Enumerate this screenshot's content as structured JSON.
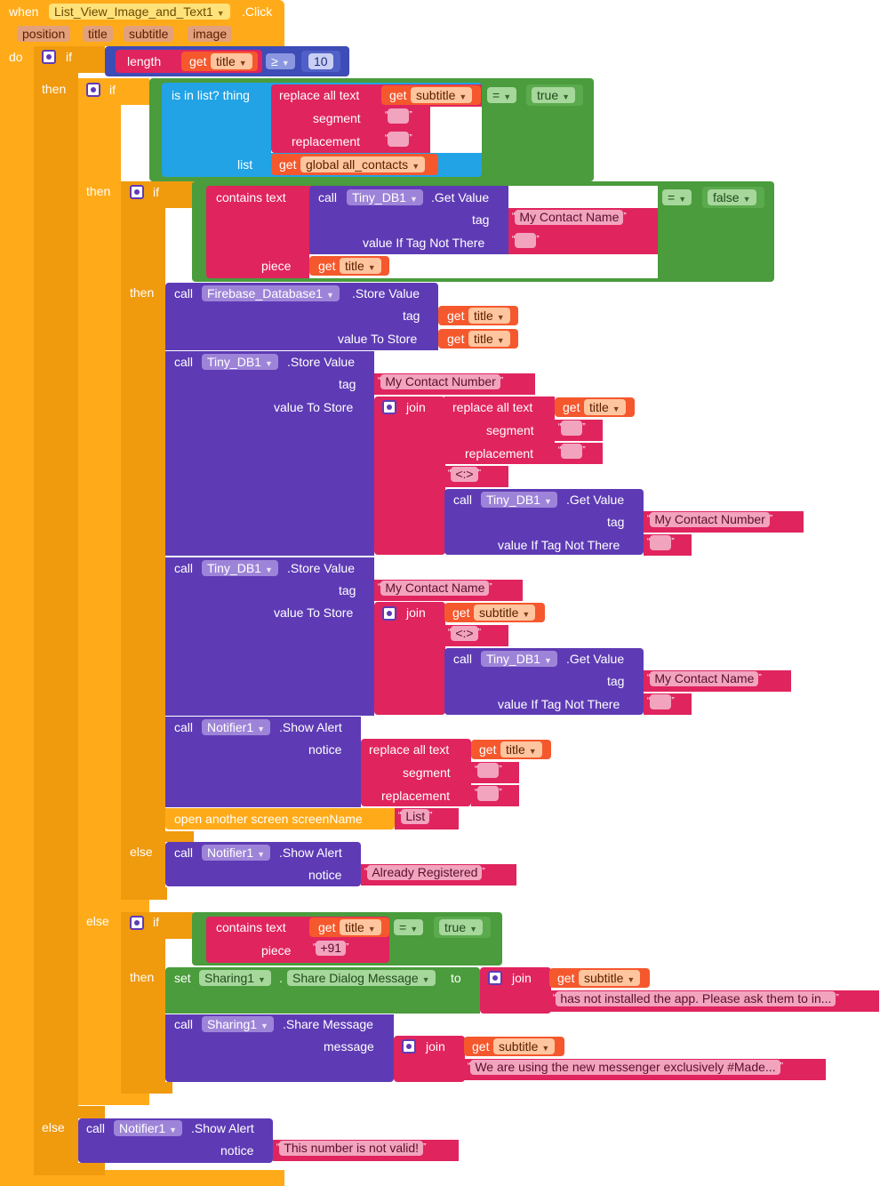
{
  "event": {
    "when": "when",
    "component": "List_View_Image_and_Text1",
    "event_name": ".Click",
    "params": [
      "position",
      "title",
      "subtitle",
      "image"
    ],
    "do": "do"
  },
  "kw": {
    "if": "if",
    "then": "then",
    "else": "else",
    "call": "call",
    "get": "get",
    "join": "join",
    "length": "length",
    "set": "set",
    "to": "to",
    "tag": "tag",
    "value_to_store": "value To Store",
    "value_if_tag_not_there": "value If Tag Not There",
    "replace_all_text": "replace all text",
    "segment": "segment",
    "replacement": "replacement",
    "contains_text": "contains  text",
    "piece": "piece",
    "notice": "notice",
    "message": "message",
    "is_in_list": "is in list? thing",
    "list": "list",
    "open_screen": "open another screen  screenName"
  },
  "vars": {
    "title": "title",
    "subtitle": "subtitle",
    "global_all_contacts": "global all_contacts"
  },
  "ops": {
    "gte": "≥",
    "eq": "="
  },
  "values": {
    "ten": "10",
    "true": "true",
    "false": "false"
  },
  "components": {
    "tinydb": "Tiny_DB1",
    "firebase": "Firebase_Database1",
    "notifier": "Notifier1",
    "sharing": "Sharing1"
  },
  "methods": {
    "get_value": ".Get Value",
    "store_value": ".Store Value",
    "show_alert": ".Show Alert",
    "share_message": ".Share Message",
    "share_dialog_message": "Share Dialog Message"
  },
  "strings": {
    "empty": "",
    "my_contact_name": "My Contact Name",
    "my_contact_number": "My Contact Number",
    "sep": "<:>",
    "list_screen": "List",
    "already_registered": "Already Registered",
    "plus91": "+91",
    "not_installed": "has not installed the app. Please ask them to in...",
    "we_are_using": "We are using the new messenger exclusively #Made...",
    "not_valid": "This number is not valid!"
  },
  "colors": {
    "control": "#FFAB19",
    "logic": "#4A9C3C",
    "text": "#E0245E",
    "lists": "#22A3E6",
    "procedure": "#5E3BB5",
    "variable": "#F5582D",
    "math": "#3D4CB6"
  }
}
